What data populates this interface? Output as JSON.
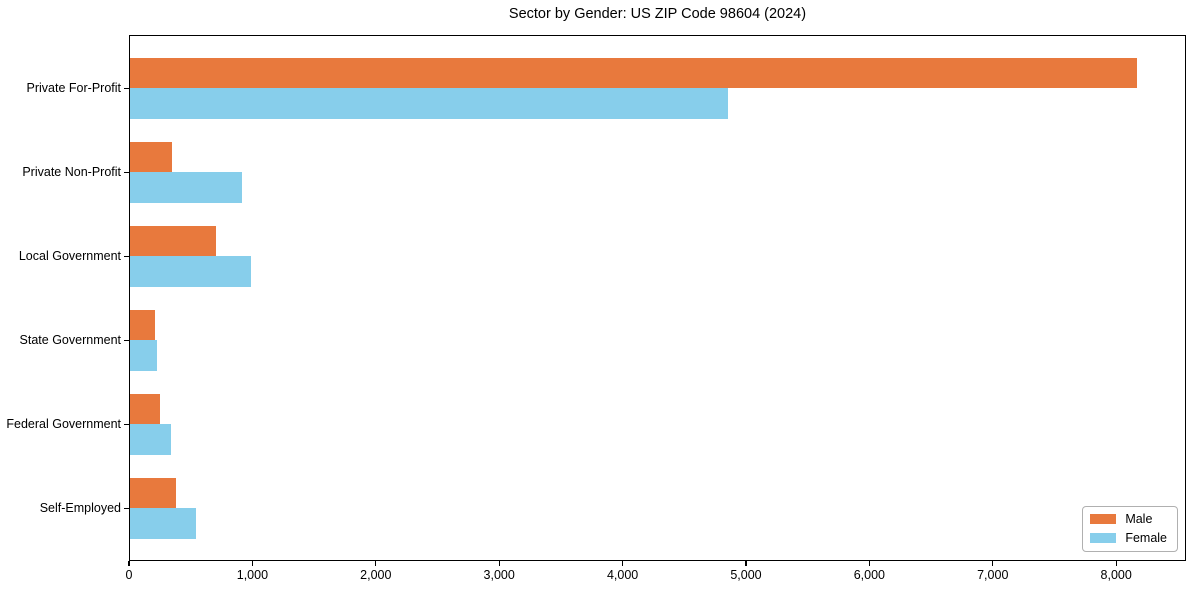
{
  "chart_data": {
    "type": "bar",
    "orientation": "horizontal",
    "title": "Sector by Gender: US ZIP Code 98604 (2024)",
    "categories": [
      "Private For-Profit",
      "Private Non-Profit",
      "Local Government",
      "State Government",
      "Federal Government",
      "Self-Employed"
    ],
    "series": [
      {
        "name": "Male",
        "color": "#e8793d",
        "values": [
          8160,
          340,
          695,
          200,
          240,
          370
        ]
      },
      {
        "name": "Female",
        "color": "#87ceeb",
        "values": [
          4845,
          905,
          980,
          220,
          330,
          535
        ]
      }
    ],
    "xlabel": "",
    "ylabel": "",
    "xlim": [
      0,
      8566
    ],
    "xticks": [
      0,
      1000,
      2000,
      3000,
      4000,
      5000,
      6000,
      7000,
      8000
    ],
    "xtick_labels": [
      "0",
      "1,000",
      "2,000",
      "3,000",
      "4,000",
      "5,000",
      "6,000",
      "7,000",
      "8,000"
    ],
    "grid": false,
    "legend": {
      "position": "lower right"
    }
  }
}
